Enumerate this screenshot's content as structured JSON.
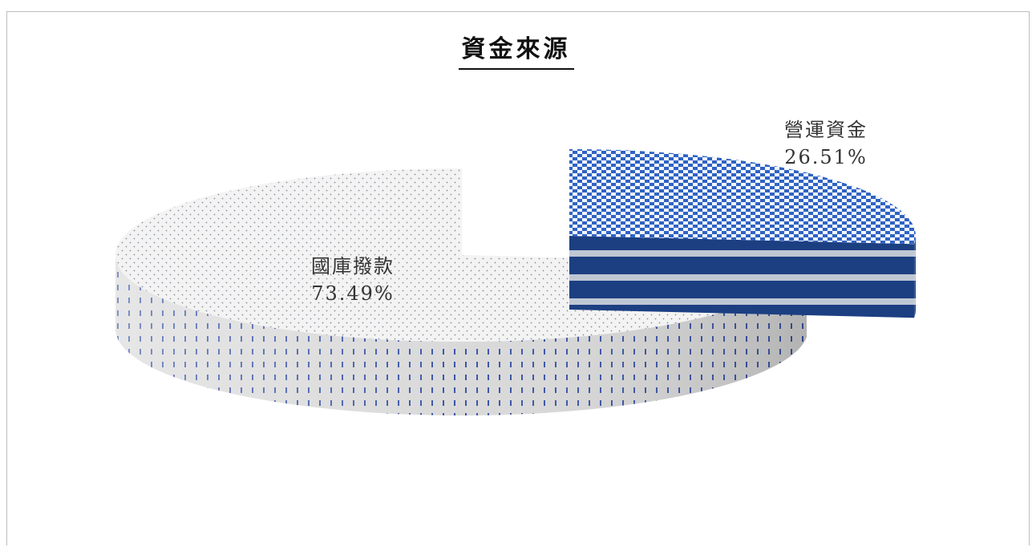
{
  "chart_data": {
    "type": "pie",
    "title": "資金來源",
    "slices": [
      {
        "label": "國庫撥款",
        "value": 73.49,
        "value_label": "73.49%",
        "color": "#f2f2f2",
        "pattern": "dotted-white"
      },
      {
        "label": "營運資金",
        "value": 26.51,
        "value_label": "26.51%",
        "color": "#1f4fa8",
        "pattern": "blue-checker"
      }
    ],
    "style": "3d-exploded"
  }
}
